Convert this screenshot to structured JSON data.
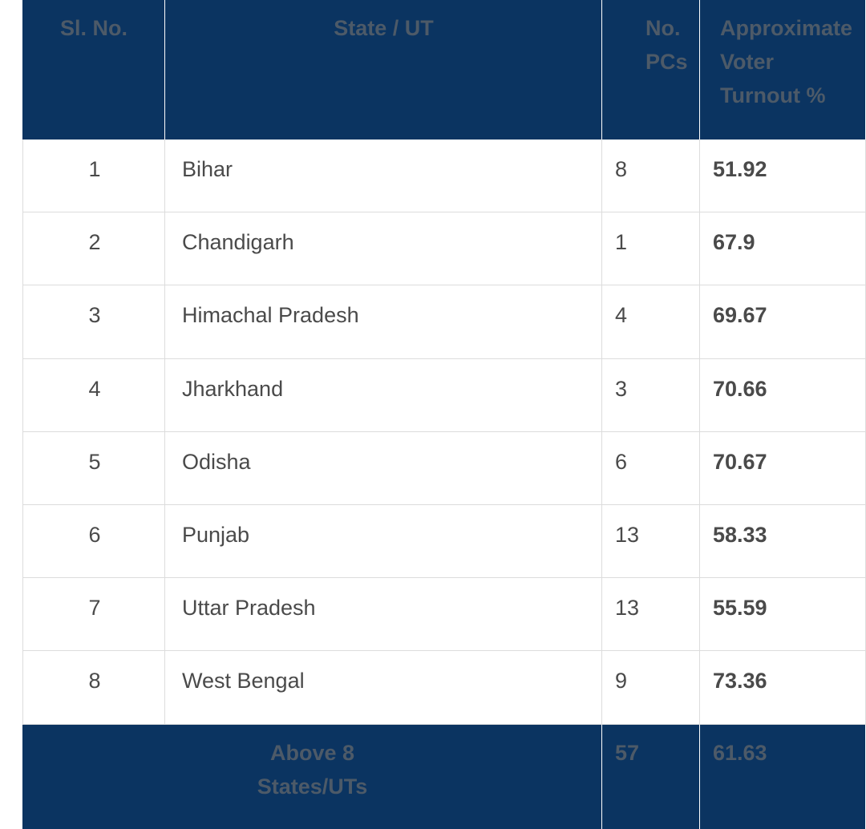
{
  "table": {
    "header": [
      "Sl. No.",
      "State / UT",
      "No. PCs",
      "Approximate Voter Turnout %"
    ],
    "rows": [
      [
        1,
        "Bihar",
        8,
        51.92
      ],
      [
        2,
        "Chandigarh",
        1,
        67.9
      ],
      [
        3,
        "Himachal Pradesh",
        4,
        69.67
      ],
      [
        4,
        "Jharkhand",
        3,
        70.66
      ],
      [
        5,
        "Odisha",
        6,
        70.67
      ],
      [
        6,
        "Punjab",
        13,
        58.33
      ],
      [
        7,
        "Uttar Pradesh",
        13,
        55.59
      ],
      [
        8,
        "West Bengal",
        9,
        73.36
      ]
    ],
    "footer": [
      "Above 8 States/UTs",
      57,
      61.63
    ]
  }
}
